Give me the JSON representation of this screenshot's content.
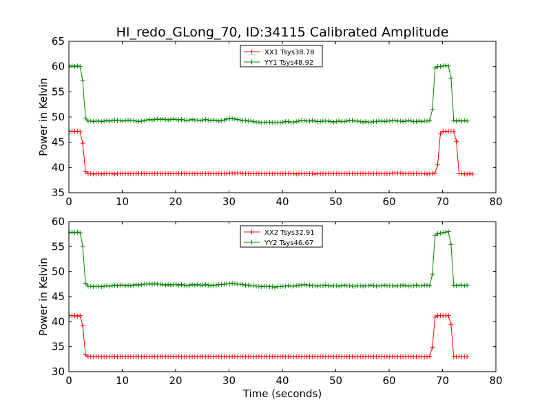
{
  "figure": {
    "title": "HI_redo_GLong_70, ID:34115 Calibrated Amplitude"
  },
  "chart_data": [
    {
      "type": "line",
      "xlabel": "",
      "ylabel": "Power in Kelvin",
      "xlim": [
        0,
        80
      ],
      "ylim": [
        35,
        65
      ],
      "xticks": [
        "0",
        "10",
        "20",
        "30",
        "40",
        "50",
        "60",
        "70",
        "80"
      ],
      "yticks": [
        "35",
        "40",
        "45",
        "50",
        "55",
        "60",
        "65"
      ],
      "grid": false,
      "legend_position": "top-center",
      "series": [
        {
          "name": "XX1 Tsys38.78",
          "color": "#ff0000",
          "marker": "plus",
          "x_start": 0.1,
          "x_step": 0.5,
          "values": [
            47.1,
            47.2,
            47.1,
            47.2,
            47.1,
            44.8,
            39.2,
            38.8,
            38.8,
            38.7,
            38.8,
            38.8,
            38.7,
            38.8,
            38.8,
            38.8,
            38.8,
            38.7,
            38.8,
            38.8,
            38.8,
            38.8,
            38.8,
            38.8,
            38.8,
            38.8,
            38.8,
            38.8,
            38.8,
            38.8,
            38.8,
            38.8,
            38.8,
            38.8,
            38.8,
            38.8,
            38.8,
            38.8,
            38.8,
            38.8,
            38.8,
            38.8,
            38.8,
            38.8,
            38.8,
            38.8,
            38.8,
            38.8,
            38.8,
            38.8,
            38.8,
            38.8,
            38.8,
            38.8,
            38.8,
            38.8,
            38.8,
            38.8,
            38.8,
            38.8,
            38.9,
            38.9,
            38.9,
            38.9,
            38.9,
            38.8,
            38.8,
            38.8,
            38.8,
            38.8,
            38.8,
            38.8,
            38.8,
            38.8,
            38.8,
            38.8,
            38.8,
            38.8,
            38.8,
            38.8,
            38.8,
            38.8,
            38.8,
            38.8,
            38.8,
            38.7,
            38.8,
            38.8,
            38.8,
            38.8,
            38.8,
            38.8,
            38.7,
            38.8,
            38.8,
            38.8,
            38.8,
            38.8,
            38.8,
            38.8,
            38.8,
            38.8,
            38.8,
            38.8,
            38.8,
            38.8,
            38.8,
            38.8,
            38.8,
            38.8,
            38.8,
            38.8,
            38.8,
            38.8,
            38.8,
            38.8,
            38.8,
            38.8,
            38.8,
            38.8,
            38.8,
            38.9,
            38.9,
            38.9,
            38.9,
            38.8,
            38.8,
            38.8,
            38.8,
            38.8,
            38.8,
            38.8,
            38.8,
            38.8,
            38.7,
            38.8,
            38.8,
            38.9,
            40.6,
            46.7,
            47.2,
            47.1,
            47.2,
            47.2,
            47.2,
            45.2,
            38.8,
            38.8,
            38.7,
            38.7,
            38.8,
            38.7
          ]
        },
        {
          "name": "YY1 Tsys48.92",
          "color": "#008000",
          "marker": "plus",
          "x_start": 0.1,
          "x_step": 0.5,
          "values": [
            60.0,
            60.1,
            60.0,
            60.1,
            60.0,
            57.2,
            49.8,
            49.2,
            49.2,
            49.1,
            49.2,
            49.2,
            49.1,
            49.2,
            49.3,
            49.2,
            49.3,
            49.4,
            49.3,
            49.3,
            49.2,
            49.3,
            49.4,
            49.3,
            49.3,
            49.2,
            49.1,
            49.2,
            49.3,
            49.4,
            49.5,
            49.4,
            49.5,
            49.6,
            49.5,
            49.6,
            49.5,
            49.4,
            49.5,
            49.6,
            49.5,
            49.4,
            49.5,
            49.4,
            49.3,
            49.4,
            49.5,
            49.4,
            49.4,
            49.3,
            49.4,
            49.5,
            49.4,
            49.3,
            49.4,
            49.3,
            49.2,
            49.3,
            49.4,
            49.6,
            49.7,
            49.7,
            49.6,
            49.5,
            49.4,
            49.3,
            49.3,
            49.2,
            49.2,
            49.1,
            49.0,
            49.0,
            48.9,
            48.9,
            49.0,
            49.0,
            48.9,
            48.9,
            48.9,
            48.9,
            49.0,
            49.1,
            49.1,
            49.0,
            49.0,
            49.1,
            49.2,
            49.3,
            49.3,
            49.2,
            49.2,
            49.3,
            49.2,
            49.1,
            49.1,
            49.2,
            49.2,
            49.2,
            49.1,
            49.0,
            49.1,
            49.2,
            49.1,
            49.1,
            49.2,
            49.3,
            49.3,
            49.2,
            49.2,
            49.1,
            49.0,
            49.1,
            49.0,
            49.0,
            49.1,
            49.1,
            49.2,
            49.2,
            49.1,
            49.2,
            49.2,
            49.3,
            49.3,
            49.2,
            49.2,
            49.1,
            49.2,
            49.3,
            49.2,
            49.1,
            49.1,
            49.2,
            49.1,
            49.2,
            49.2,
            49.3,
            51.5,
            59.7,
            60.0,
            60.0,
            60.1,
            60.2,
            60.1,
            57.7,
            49.3,
            49.2,
            49.3,
            49.2,
            49.3,
            49.2
          ]
        }
      ]
    },
    {
      "type": "line",
      "xlabel": "Time (seconds)",
      "ylabel": "Power in Kelvin",
      "xlim": [
        0,
        80
      ],
      "ylim": [
        30,
        60
      ],
      "xticks": [
        "0",
        "10",
        "20",
        "30",
        "40",
        "50",
        "60",
        "70",
        "80"
      ],
      "yticks": [
        "30",
        "35",
        "40",
        "45",
        "50",
        "55",
        "60"
      ],
      "grid": false,
      "legend_position": "top-center",
      "series": [
        {
          "name": "XX2 Tsys32.91",
          "color": "#ff0000",
          "marker": "plus",
          "x_start": 0.1,
          "x_step": 0.5,
          "values": [
            41.2,
            41.2,
            41.2,
            41.1,
            41.2,
            39.2,
            33.4,
            33.0,
            33.0,
            33.0,
            33.0,
            33.0,
            33.0,
            33.0,
            33.0,
            33.0,
            33.0,
            33.0,
            33.0,
            33.0,
            33.0,
            33.0,
            33.0,
            33.0,
            33.0,
            33.0,
            33.0,
            33.0,
            33.0,
            33.0,
            33.0,
            33.0,
            33.0,
            33.0,
            33.0,
            33.0,
            33.0,
            33.0,
            33.0,
            33.0,
            33.0,
            33.0,
            33.0,
            33.0,
            33.0,
            33.0,
            33.0,
            33.0,
            33.0,
            33.0,
            33.0,
            33.0,
            33.0,
            33.0,
            33.0,
            33.0,
            33.0,
            33.0,
            33.0,
            33.0,
            33.0,
            33.0,
            33.0,
            33.0,
            33.0,
            33.0,
            33.0,
            33.0,
            33.0,
            33.0,
            33.0,
            33.0,
            33.0,
            33.0,
            33.0,
            33.0,
            33.0,
            33.0,
            33.0,
            33.0,
            33.0,
            33.0,
            33.0,
            33.0,
            33.0,
            33.0,
            33.0,
            33.0,
            33.0,
            33.0,
            33.0,
            33.0,
            33.0,
            33.0,
            33.0,
            33.0,
            33.0,
            33.0,
            33.0,
            33.0,
            33.0,
            33.0,
            33.0,
            33.0,
            33.0,
            33.0,
            33.0,
            33.0,
            33.0,
            33.0,
            33.0,
            33.0,
            33.0,
            33.0,
            33.0,
            33.0,
            33.0,
            33.0,
            33.0,
            33.0,
            33.0,
            33.0,
            33.0,
            33.0,
            33.0,
            33.0,
            33.0,
            33.0,
            33.0,
            33.0,
            33.0,
            33.0,
            33.0,
            33.0,
            33.0,
            33.1,
            34.9,
            40.9,
            41.2,
            41.2,
            41.2,
            41.2,
            41.2,
            39.4,
            33.0,
            33.0,
            33.0,
            33.0,
            33.0,
            33.0
          ]
        },
        {
          "name": "YY2 Tsys46.67",
          "color": "#008000",
          "marker": "plus",
          "x_start": 0.1,
          "x_step": 0.5,
          "values": [
            57.8,
            57.9,
            57.8,
            57.9,
            57.8,
            55.1,
            47.7,
            47.1,
            47.1,
            47.0,
            47.1,
            47.1,
            47.0,
            47.1,
            47.2,
            47.1,
            47.2,
            47.3,
            47.2,
            47.3,
            47.3,
            47.2,
            47.3,
            47.2,
            47.3,
            47.4,
            47.3,
            47.4,
            47.5,
            47.5,
            47.6,
            47.5,
            47.6,
            47.5,
            47.5,
            47.4,
            47.3,
            47.4,
            47.3,
            47.4,
            47.4,
            47.3,
            47.4,
            47.3,
            47.2,
            47.3,
            47.4,
            47.3,
            47.4,
            47.3,
            47.3,
            47.4,
            47.3,
            47.2,
            47.3,
            47.3,
            47.4,
            47.4,
            47.5,
            47.6,
            47.6,
            47.7,
            47.6,
            47.5,
            47.5,
            47.4,
            47.3,
            47.3,
            47.2,
            47.2,
            47.1,
            47.1,
            47.0,
            47.1,
            47.1,
            47.0,
            47.0,
            46.9,
            47.0,
            47.0,
            47.1,
            47.1,
            47.2,
            47.1,
            47.1,
            47.2,
            47.3,
            47.3,
            47.4,
            47.3,
            47.3,
            47.2,
            47.2,
            47.1,
            47.2,
            47.2,
            47.3,
            47.2,
            47.1,
            47.2,
            47.2,
            47.1,
            47.2,
            47.3,
            47.2,
            47.2,
            47.1,
            47.1,
            47.2,
            47.2,
            47.1,
            47.2,
            47.2,
            47.3,
            47.2,
            47.1,
            47.2,
            47.2,
            47.3,
            47.2,
            47.2,
            47.2,
            47.1,
            47.2,
            47.2,
            47.3,
            47.2,
            47.1,
            47.2,
            47.2,
            47.3,
            47.2,
            47.2,
            47.3,
            47.3,
            47.2,
            49.5,
            57.2,
            57.6,
            57.7,
            57.8,
            57.9,
            58.0,
            55.4,
            47.3,
            47.2,
            47.3,
            47.3,
            47.2,
            47.3
          ]
        }
      ]
    }
  ]
}
